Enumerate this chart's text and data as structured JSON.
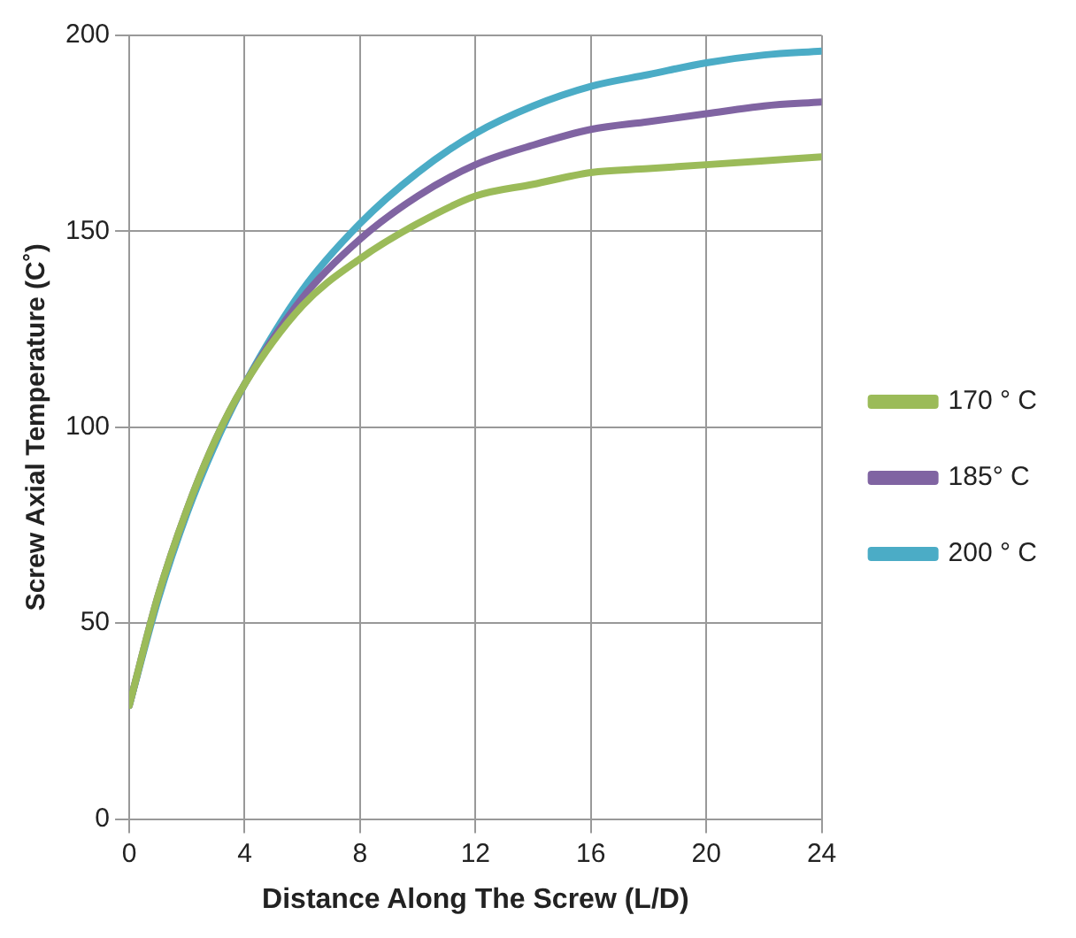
{
  "chart_data": {
    "type": "line",
    "xlabel": "Distance Along The Screw (L/D)",
    "ylabel": "Screw Axial Temperature (C˚)",
    "x": [
      0,
      1,
      2,
      3,
      4,
      6,
      8,
      10,
      12,
      14,
      16,
      18,
      20,
      22,
      24
    ],
    "series": [
      {
        "name": "170 ° C",
        "color": "#9bbb59",
        "values": [
          29,
          57,
          79,
          97,
          111,
          131,
          143,
          152,
          159,
          162,
          165,
          166,
          167,
          168,
          169
        ]
      },
      {
        "name": "185° C",
        "color": "#8064a2",
        "values": [
          29,
          57,
          79,
          97,
          111,
          133,
          148,
          159,
          167,
          172,
          176,
          178,
          180,
          182,
          183
        ]
      },
      {
        "name": "200 ° C",
        "color": "#4bacc6",
        "values": [
          29,
          56,
          78,
          96,
          111,
          135,
          152,
          165,
          175,
          182,
          187,
          190,
          193,
          195,
          196
        ]
      }
    ],
    "xlim": [
      0,
      24
    ],
    "xticks": [
      0,
      4,
      8,
      12,
      16,
      20,
      24
    ],
    "ylim": [
      0,
      200
    ],
    "yticks": [
      0,
      50,
      100,
      150,
      200
    ],
    "grid": true,
    "legend": "right",
    "marker": "none",
    "line_style": "solid"
  }
}
